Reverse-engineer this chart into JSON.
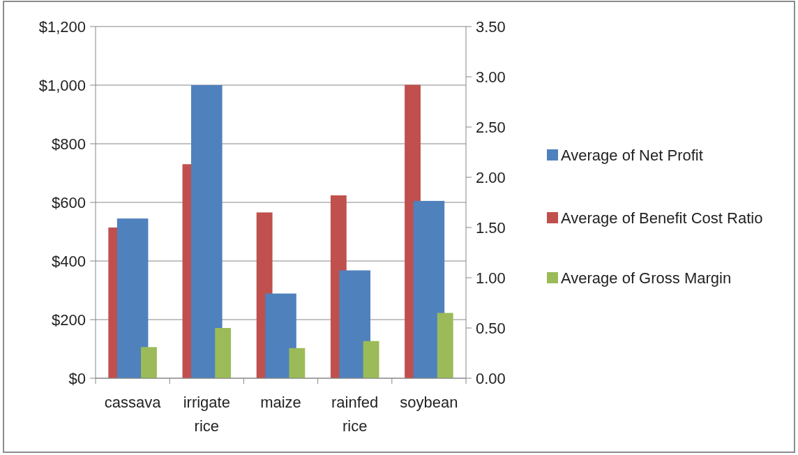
{
  "chart_data": {
    "type": "bar",
    "categories": [
      "cassava",
      "irrigate rice",
      "maize",
      "rainfed rice",
      "soybean"
    ],
    "series": [
      {
        "name": "Average of Net Profit",
        "color": "#4f81bd",
        "values": [
          545,
          1000,
          289,
          368,
          605
        ]
      },
      {
        "name": "Average of Benefit Cost Ratio",
        "color": "#c0504d",
        "axis": "y2",
        "values": [
          1.5,
          2.13,
          1.65,
          1.82,
          2.92
        ]
      },
      {
        "name": "Average of Gross Margin",
        "color": "#9bbb59",
        "axis": "y2",
        "values": [
          0.31,
          0.5,
          0.3,
          0.37,
          0.65
        ]
      }
    ],
    "ylim": [
      0,
      1200
    ],
    "yticks": [
      {
        "value": 0,
        "label": "$0"
      },
      {
        "value": 200,
        "label": "$200"
      },
      {
        "value": 400,
        "label": "$400"
      },
      {
        "value": 600,
        "label": "$600"
      },
      {
        "value": 800,
        "label": "$800"
      },
      {
        "value": 1000,
        "label": "$1,000"
      },
      {
        "value": 1200,
        "label": "$1,200"
      }
    ],
    "y2lim": [
      0,
      3.5
    ],
    "y2ticks": [
      {
        "value": 0,
        "label": "0.00"
      },
      {
        "value": 0.5,
        "label": "0.50"
      },
      {
        "value": 1,
        "label": "1.00"
      },
      {
        "value": 1.5,
        "label": "1.50"
      },
      {
        "value": 2,
        "label": "2.00"
      },
      {
        "value": 2.5,
        "label": "2.50"
      },
      {
        "value": 3,
        "label": "3.00"
      },
      {
        "value": 3.5,
        "label": "3.50"
      }
    ],
    "grid": "y",
    "legend": "right"
  }
}
